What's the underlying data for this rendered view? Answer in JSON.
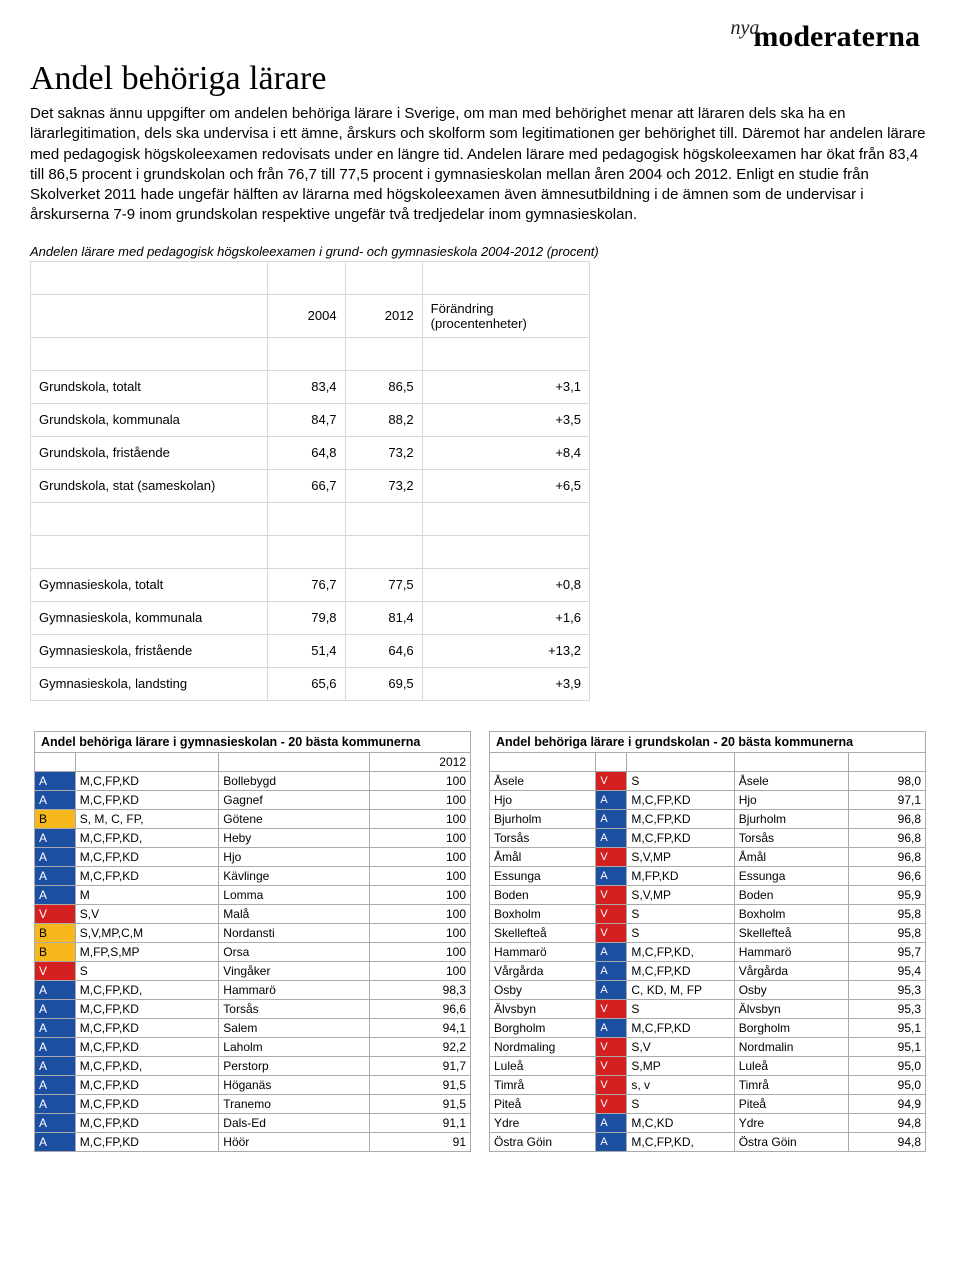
{
  "logo": {
    "prefix": "nya",
    "name": "moderaterna"
  },
  "heading": "Andel behöriga lärare",
  "paragraph": "Det saknas ännu uppgifter om andelen behöriga lärare i Sverige, om man med behörighet menar att läraren dels ska ha en lärarlegitimation, dels ska undervisa i ett ämne, årskurs och skolform som legitimationen ger behörighet till.\nDäremot har andelen lärare med pedagogisk högskoleexamen redovisats under en längre tid. Andelen lärare med pedagogisk högskoleexamen har ökat från 83,4 till 86,5 procent i grundskolan och från 76,7 till 77,5 procent i gymnasieskolan mellan åren 2004 och 2012. Enligt en studie från Skolverket 2011 hade ungefär hälften av lärarna med högskoleexamen även ämnesutbildning i de ämnen som de undervisar i årskurserna 7-9 inom grundskolan respektive ungefär två tredjedelar inom gymnasieskolan.",
  "table1": {
    "caption": "Andelen lärare med pedagogisk högskoleexamen i grund- och gymnasieskola 2004-2012 (procent)",
    "col_year_a": "2004",
    "col_year_b": "2012",
    "col_change": "Förändring (procentenheter)",
    "rows": [
      {
        "label": "Grundskola, totalt",
        "a": "83,4",
        "b": "86,5",
        "d": "+3,1"
      },
      {
        "label": "Grundskola, kommunala",
        "a": "84,7",
        "b": "88,2",
        "d": "+3,5"
      },
      {
        "label": "Grundskola, fristående",
        "a": "64,8",
        "b": "73,2",
        "d": "+8,4"
      },
      {
        "label": "Grundskola, stat (sameskolan)",
        "a": "66,7",
        "b": "73,2",
        "d": "+6,5"
      }
    ],
    "rows2": [
      {
        "label": "Gymnasieskola, totalt",
        "a": "76,7",
        "b": "77,5",
        "d": "+0,8"
      },
      {
        "label": "Gymnasieskola, kommunala",
        "a": "79,8",
        "b": "81,4",
        "d": "+1,6"
      },
      {
        "label": "Gymnasieskola, fristående",
        "a": "51,4",
        "b": "64,6",
        "d": "+13,2"
      },
      {
        "label": "Gymnasieskola, landsting",
        "a": "65,6",
        "b": "69,5",
        "d": "+3,9"
      }
    ]
  },
  "colors": {
    "blue": "#1c4fa1",
    "yellow": "#f6b81c",
    "red": "#d42020",
    "grid": "#aaaaaa"
  },
  "left_table": {
    "title": "Andel behöriga lärare i gymnasieskolan - 20 bästa kommunerna",
    "year": "2012",
    "rows": [
      {
        "l": "A",
        "lc": "blue",
        "p": "M,C,FP,KD",
        "n": "Bollebygd",
        "v": "100"
      },
      {
        "l": "A",
        "lc": "blue",
        "p": "M,C,FP,KD",
        "n": "Gagnef",
        "v": "100"
      },
      {
        "l": "B",
        "lc": "yellow",
        "p": "S, M, C, FP,",
        "n": "Götene",
        "v": "100"
      },
      {
        "l": "A",
        "lc": "blue",
        "p": "M,C,FP,KD,",
        "n": "Heby",
        "v": "100"
      },
      {
        "l": "A",
        "lc": "blue",
        "p": "M,C,FP,KD",
        "n": "Hjo",
        "v": "100"
      },
      {
        "l": "A",
        "lc": "blue",
        "p": "M,C,FP,KD",
        "n": "Kävlinge",
        "v": "100"
      },
      {
        "l": "A",
        "lc": "blue",
        "p": "M",
        "n": "Lomma",
        "v": "100"
      },
      {
        "l": "V",
        "lc": "red",
        "p": "S,V",
        "n": "Malå",
        "v": "100"
      },
      {
        "l": "B",
        "lc": "yellow",
        "p": "S,V,MP,C,M",
        "n": "Nordansti",
        "v": "100"
      },
      {
        "l": "B",
        "lc": "yellow",
        "p": "M,FP,S,MP",
        "n": "Orsa",
        "v": "100"
      },
      {
        "l": "V",
        "lc": "red",
        "p": "S",
        "n": "Vingåker",
        "v": "100"
      },
      {
        "l": "A",
        "lc": "blue",
        "p": "M,C,FP,KD,",
        "n": "Hammarö",
        "v": "98,3"
      },
      {
        "l": "A",
        "lc": "blue",
        "p": "M,C,FP,KD",
        "n": "Torsås",
        "v": "96,6"
      },
      {
        "l": "A",
        "lc": "blue",
        "p": "M,C,FP,KD",
        "n": "Salem",
        "v": "94,1"
      },
      {
        "l": "A",
        "lc": "blue",
        "p": "M,C,FP,KD",
        "n": "Laholm",
        "v": "92,2"
      },
      {
        "l": "A",
        "lc": "blue",
        "p": "M,C,FP,KD,",
        "n": "Perstorp",
        "v": "91,7"
      },
      {
        "l": "A",
        "lc": "blue",
        "p": "M,C,FP,KD",
        "n": "Höganäs",
        "v": "91,5"
      },
      {
        "l": "A",
        "lc": "blue",
        "p": "M,C,FP,KD",
        "n": "Tranemo",
        "v": "91,5"
      },
      {
        "l": "A",
        "lc": "blue",
        "p": "M,C,FP,KD",
        "n": "Dals-Ed",
        "v": "91,1"
      },
      {
        "l": "A",
        "lc": "blue",
        "p": "M,C,FP,KD",
        "n": "Höör",
        "v": "91"
      }
    ]
  },
  "right_table": {
    "title": "Andel behöriga lärare i grundskolan - 20 bästa kommunerna",
    "rows": [
      {
        "n1": "Åsele",
        "l": "V",
        "lc": "red",
        "p": "S",
        "n2": "Åsele",
        "v": "98,0"
      },
      {
        "n1": "Hjo",
        "l": "A",
        "lc": "blue",
        "p": "M,C,FP,KD",
        "n2": "Hjo",
        "v": "97,1"
      },
      {
        "n1": "Bjurholm",
        "l": "A",
        "lc": "blue",
        "p": "M,C,FP,KD",
        "n2": "Bjurholm",
        "v": "96,8"
      },
      {
        "n1": "Torsås",
        "l": "A",
        "lc": "blue",
        "p": "M,C,FP,KD",
        "n2": "Torsås",
        "v": "96,8"
      },
      {
        "n1": "Åmål",
        "l": "V",
        "lc": "red",
        "p": "S,V,MP",
        "n2": "Åmål",
        "v": "96,8"
      },
      {
        "n1": "Essunga",
        "l": "A",
        "lc": "blue",
        "p": "M,FP,KD",
        "n2": "Essunga",
        "v": "96,6"
      },
      {
        "n1": "Boden",
        "l": "V",
        "lc": "red",
        "p": "S,V,MP",
        "n2": "Boden",
        "v": "95,9"
      },
      {
        "n1": "Boxholm",
        "l": "V",
        "lc": "red",
        "p": "S",
        "n2": "Boxholm",
        "v": "95,8"
      },
      {
        "n1": "Skellefteå",
        "l": "V",
        "lc": "red",
        "p": "S",
        "n2": "Skellefteå",
        "v": "95,8"
      },
      {
        "n1": "Hammarö",
        "l": "A",
        "lc": "blue",
        "p": "M,C,FP,KD,",
        "n2": "Hammarö",
        "v": "95,7"
      },
      {
        "n1": "Vårgårda",
        "l": "A",
        "lc": "blue",
        "p": "M,C,FP,KD",
        "n2": "Vårgårda",
        "v": "95,4"
      },
      {
        "n1": "Osby",
        "l": "A",
        "lc": "blue",
        "p": "C, KD, M, FP",
        "n2": "Osby",
        "v": "95,3"
      },
      {
        "n1": "Älvsbyn",
        "l": "V",
        "lc": "red",
        "p": "S",
        "n2": "Älvsbyn",
        "v": "95,3"
      },
      {
        "n1": "Borgholm",
        "l": "A",
        "lc": "blue",
        "p": "M,C,FP,KD",
        "n2": "Borgholm",
        "v": "95,1"
      },
      {
        "n1": "Nordmaling",
        "l": "V",
        "lc": "red",
        "p": "S,V",
        "n2": "Nordmalin",
        "v": "95,1"
      },
      {
        "n1": "Luleå",
        "l": "V",
        "lc": "red",
        "p": "S,MP",
        "n2": "Luleå",
        "v": "95,0"
      },
      {
        "n1": "Timrå",
        "l": "V",
        "lc": "red",
        "p": "s, v",
        "n2": "Timrå",
        "v": "95,0"
      },
      {
        "n1": "Piteå",
        "l": "V",
        "lc": "red",
        "p": "S",
        "n2": "Piteå",
        "v": "94,9"
      },
      {
        "n1": "Ydre",
        "l": "A",
        "lc": "blue",
        "p": "M,C,KD",
        "n2": "Ydre",
        "v": "94,8"
      },
      {
        "n1": "Östra Göin",
        "l": "A",
        "lc": "blue",
        "p": "M,C,FP,KD,",
        "n2": "Östra Göin",
        "v": "94,8"
      }
    ]
  }
}
